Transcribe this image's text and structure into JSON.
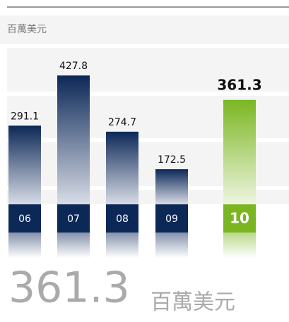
{
  "chart_data": {
    "type": "bar",
    "y_label": "百萬美元",
    "categories": [
      "06",
      "07",
      "08",
      "09",
      "10"
    ],
    "values": [
      291.1,
      427.8,
      274.7,
      172.5,
      361.3
    ],
    "colors": [
      "#0c2857",
      "#0c2857",
      "#0c2857",
      "#0c2857",
      "#7bb622"
    ],
    "highlight": 4
  }
}
